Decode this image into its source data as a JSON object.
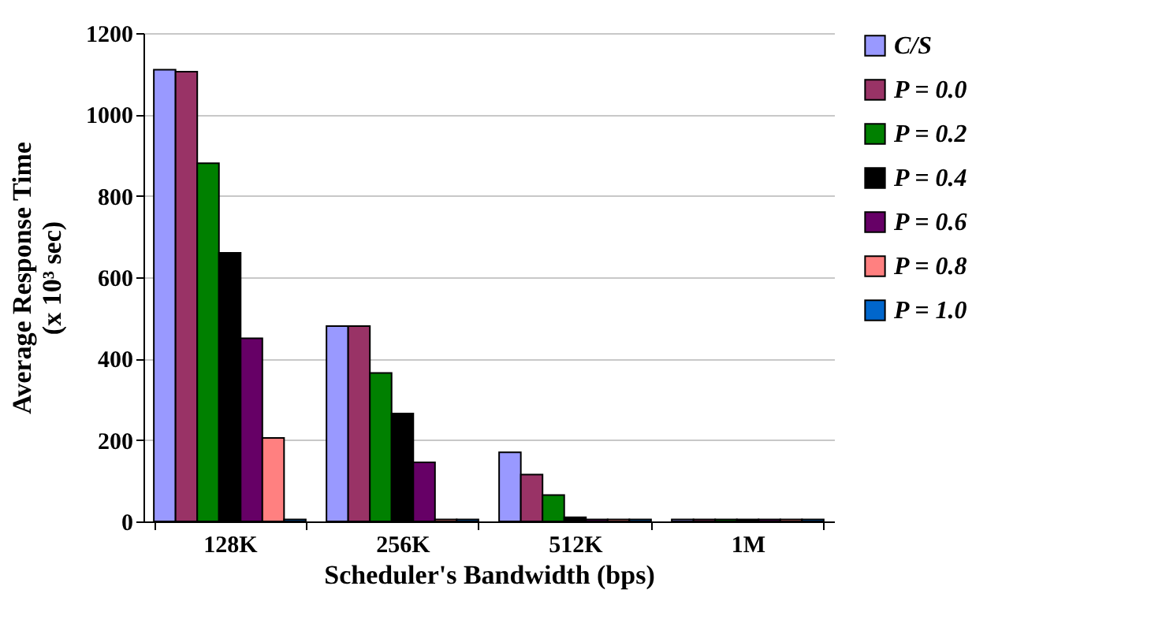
{
  "chart_data": {
    "type": "bar",
    "xlabel": "Scheduler's Bandwidth (bps)",
    "ylabel": "Average Response Time\n(x 10³ sec)",
    "categories": [
      "128K",
      "256K",
      "512K",
      "1M"
    ],
    "series": [
      {
        "name": "C/S",
        "color": "#9999ff",
        "values": [
          1110,
          480,
          170,
          5
        ]
      },
      {
        "name": "P = 0.0",
        "color": "#993366",
        "values": [
          1105,
          480,
          115,
          5
        ]
      },
      {
        "name": "P = 0.2",
        "color": "#008000",
        "values": [
          880,
          365,
          65,
          5
        ]
      },
      {
        "name": "P = 0.4",
        "color": "#000000",
        "values": [
          660,
          265,
          10,
          5
        ]
      },
      {
        "name": "P = 0.6",
        "color": "#660066",
        "values": [
          450,
          145,
          5,
          5
        ]
      },
      {
        "name": "P = 0.8",
        "color": "#ff8080",
        "values": [
          205,
          5,
          5,
          5
        ]
      },
      {
        "name": "P = 1.0",
        "color": "#0066cc",
        "values": [
          5,
          5,
          5,
          5
        ]
      }
    ],
    "ylim": [
      0,
      1200
    ],
    "yticks": [
      0,
      200,
      400,
      600,
      800,
      1000,
      1200
    ],
    "grid": "y",
    "legend": "right"
  }
}
